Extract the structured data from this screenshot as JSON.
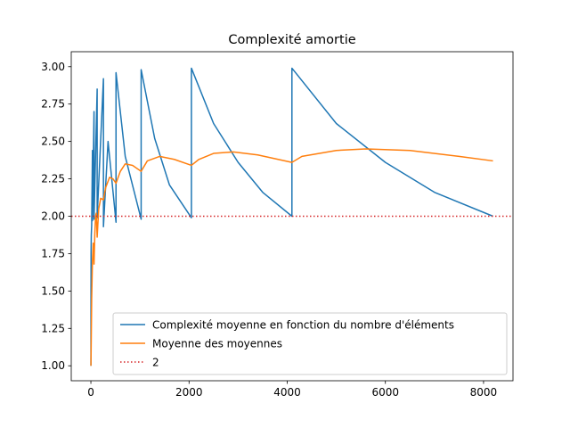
{
  "chart_data": {
    "type": "line",
    "title": "Complexité amortie",
    "xlabel": "",
    "ylabel": "",
    "xlim": [
      -400,
      8600
    ],
    "ylim": [
      0.9,
      3.1
    ],
    "xticks": [
      0,
      2000,
      4000,
      6000,
      8000
    ],
    "xtick_labels": [
      "0",
      "2000",
      "4000",
      "6000",
      "8000"
    ],
    "yticks": [
      1.0,
      1.25,
      1.5,
      1.75,
      2.0,
      2.25,
      2.5,
      2.75,
      3.0
    ],
    "ytick_labels": [
      "1.00",
      "1.25",
      "1.50",
      "1.75",
      "2.00",
      "2.25",
      "2.50",
      "2.75",
      "3.00"
    ],
    "grid": false,
    "legend_position": "lower-right",
    "series": [
      {
        "name": "Complexité moyenne en fonction du nombre d'éléments",
        "color": "#1f77b4",
        "style": "solid",
        "x": [
          1,
          2,
          2,
          4,
          4,
          8,
          8,
          16,
          16,
          32,
          32,
          64,
          64,
          128,
          128,
          256,
          256,
          350,
          512,
          512,
          700,
          1024,
          1024,
          1300,
          1600,
          2048,
          2048,
          2500,
          3000,
          3500,
          4096,
          4096,
          5000,
          6000,
          7000,
          8192
        ],
        "y": [
          1.0,
          1.5,
          1.5,
          1.75,
          1.75,
          1.875,
          1.875,
          1.94,
          1.94,
          2.44,
          1.97,
          2.7,
          1.98,
          2.85,
          1.99,
          2.92,
          1.93,
          2.5,
          1.96,
          2.96,
          2.4,
          1.98,
          2.98,
          2.52,
          2.21,
          1.99,
          2.99,
          2.62,
          2.36,
          2.16,
          2.0,
          2.99,
          2.62,
          2.36,
          2.16,
          2.0
        ]
      },
      {
        "name": "Moyenne des moyennes",
        "color": "#ff7f0e",
        "style": "solid",
        "x": [
          1,
          8,
          16,
          32,
          48,
          64,
          80,
          96,
          110,
          128,
          160,
          200,
          256,
          300,
          380,
          450,
          512,
          600,
          700,
          850,
          1024,
          1150,
          1400,
          1700,
          2048,
          2200,
          2500,
          2900,
          3400,
          4096,
          4300,
          5000,
          5600,
          6500,
          7500,
          8192
        ],
        "y": [
          1.0,
          1.2,
          1.45,
          1.7,
          1.82,
          1.68,
          1.88,
          2.0,
          2.02,
          1.86,
          2.05,
          2.12,
          2.11,
          2.19,
          2.26,
          2.25,
          2.22,
          2.3,
          2.35,
          2.34,
          2.3,
          2.37,
          2.4,
          2.38,
          2.34,
          2.38,
          2.42,
          2.43,
          2.41,
          2.36,
          2.4,
          2.44,
          2.45,
          2.44,
          2.4,
          2.37
        ]
      },
      {
        "name": "2",
        "color": "#d62728",
        "style": "dotted",
        "hline": 2
      }
    ]
  }
}
